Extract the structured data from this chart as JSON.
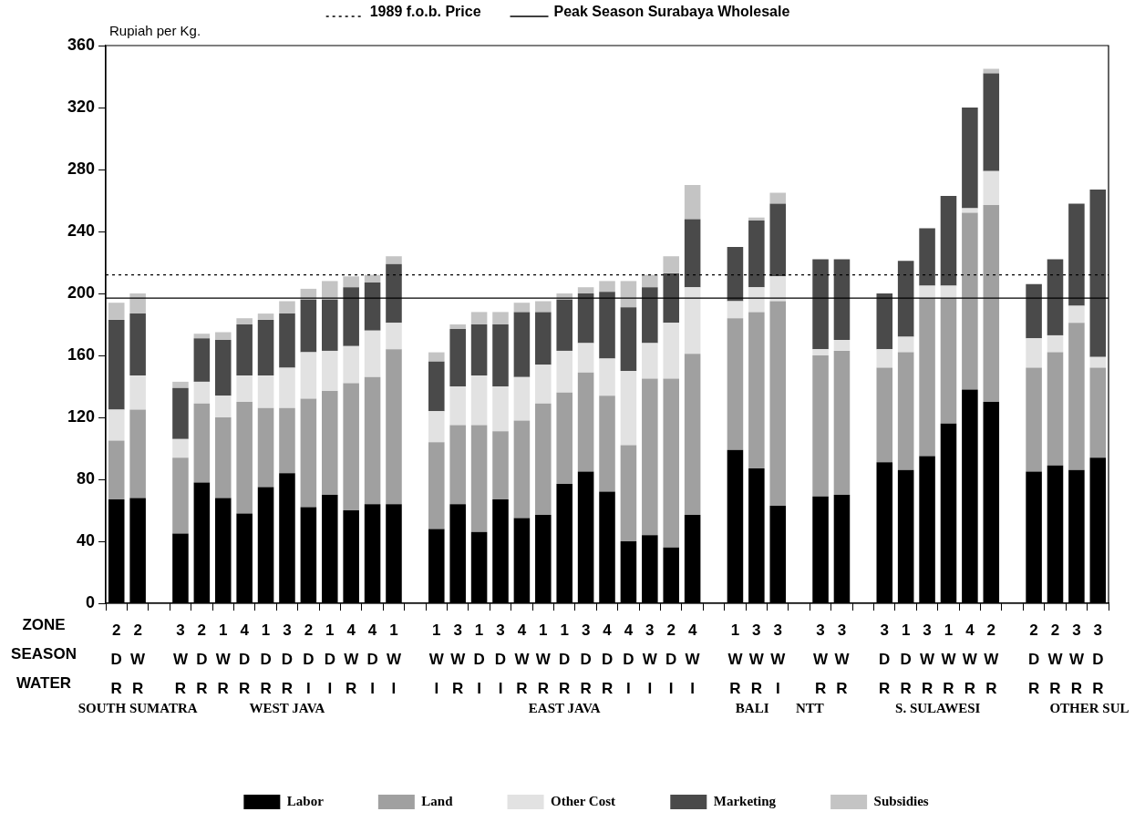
{
  "chart_data": {
    "type": "bar",
    "stacked": true,
    "ylabel": "Rupiah per Kg.",
    "ylim": [
      0,
      360
    ],
    "yticks": [
      0,
      40,
      80,
      120,
      160,
      200,
      240,
      280,
      320,
      360
    ],
    "legend": "bottom",
    "categories": [
      "2\nD\nR",
      "2\nW\nR",
      null,
      "3\nW\nR",
      "2\nD\nR",
      "1\nW\nR",
      "4\nD\nR",
      "1\nD\nR",
      "3\nD\nR",
      "2\nD\nI",
      "1\nD\nI",
      "4\nW\nR",
      "4\nD\nI",
      "1\nW\nI",
      null,
      "1\nW\nI",
      "3\nW\nR",
      "1\nD\nI",
      "3\nD\nI",
      "4\nW\nR",
      "1\nW\nR",
      "1\nD\nR",
      "3\nD\nR",
      "4\nD\nR",
      "4\nD\nI",
      "3\nW\nI",
      "2\nD\nI",
      "4\nW\nI",
      null,
      "1\nW\nR",
      "3\nW\nR",
      "3\nW\nI",
      null,
      "3\nW\nR",
      "3\nW\nR",
      null,
      "3\nD\nR",
      "1\nD\nR",
      "3\nW\nR",
      "1\nW\nR",
      "4\nW\nR",
      "2\nW\nR",
      null,
      "2\nD\nR",
      "2\nW\nR",
      "3\nW\nR",
      "3\nD\nR"
    ],
    "series": [
      {
        "name": "Labor",
        "color": "#000000",
        "values": [
          67,
          68,
          null,
          45,
          78,
          68,
          58,
          75,
          84,
          62,
          70,
          60,
          64,
          64,
          null,
          48,
          64,
          46,
          67,
          55,
          57,
          77,
          85,
          72,
          40,
          44,
          36,
          57,
          null,
          99,
          87,
          63,
          null,
          69,
          70,
          null,
          91,
          86,
          95,
          116,
          138,
          130,
          null,
          85,
          89,
          86,
          94
        ]
      },
      {
        "name": "Land",
        "color": "#a0a0a0",
        "values": [
          38,
          57,
          null,
          49,
          51,
          52,
          72,
          51,
          42,
          70,
          67,
          82,
          82,
          100,
          null,
          56,
          51,
          69,
          44,
          63,
          72,
          59,
          64,
          62,
          62,
          101,
          109,
          104,
          null,
          85,
          101,
          132,
          null,
          91,
          93,
          null,
          61,
          76,
          102,
          81,
          114,
          127,
          null,
          67,
          73,
          95,
          58
        ]
      },
      {
        "name": "Other Cost",
        "color": "#e2e2e2",
        "values": [
          20,
          22,
          null,
          12,
          14,
          14,
          17,
          21,
          26,
          30,
          26,
          24,
          30,
          17,
          null,
          20,
          25,
          32,
          29,
          28,
          25,
          27,
          19,
          24,
          48,
          23,
          36,
          43,
          null,
          11,
          16,
          16,
          null,
          4,
          7,
          null,
          12,
          10,
          8,
          8,
          3,
          22,
          null,
          19,
          11,
          11,
          7
        ]
      },
      {
        "name": "Marketing",
        "color": "#4a4a4a",
        "values": [
          58,
          40,
          null,
          33,
          28,
          36,
          33,
          36,
          35,
          34,
          33,
          38,
          31,
          38,
          null,
          32,
          37,
          33,
          40,
          42,
          34,
          33,
          32,
          43,
          41,
          36,
          32,
          44,
          null,
          35,
          43,
          47,
          null,
          58,
          52,
          null,
          36,
          49,
          37,
          58,
          65,
          63,
          null,
          35,
          49,
          66,
          108
        ]
      },
      {
        "name": "Subsidies",
        "color": "#c4c4c4",
        "values": [
          11,
          13,
          null,
          4,
          3,
          5,
          4,
          4,
          8,
          7,
          12,
          7,
          5,
          5,
          null,
          6,
          3,
          8,
          8,
          6,
          7,
          4,
          4,
          7,
          17,
          8,
          11,
          22,
          null,
          null,
          2,
          7,
          null,
          null,
          null,
          null,
          null,
          null,
          null,
          null,
          null,
          3,
          null,
          null,
          null,
          null,
          null
        ]
      }
    ],
    "ref_lines": [
      {
        "axis": "y",
        "value": 212,
        "label": "1989 f.o.b. Price",
        "line_style": "dotted",
        "color": "#000000"
      },
      {
        "axis": "y",
        "value": 197,
        "label": "Peak Season Surabaya Wholesale",
        "line_style": "solid",
        "color": "#000000"
      }
    ],
    "annotations": [
      "ZONE",
      "SEASON",
      "WATER",
      "SOUTH SUMATRA",
      "WEST JAVA",
      "EAST JAVA",
      "BALI",
      "NTT",
      "S. SULAWESI",
      "OTHER SUL"
    ]
  }
}
